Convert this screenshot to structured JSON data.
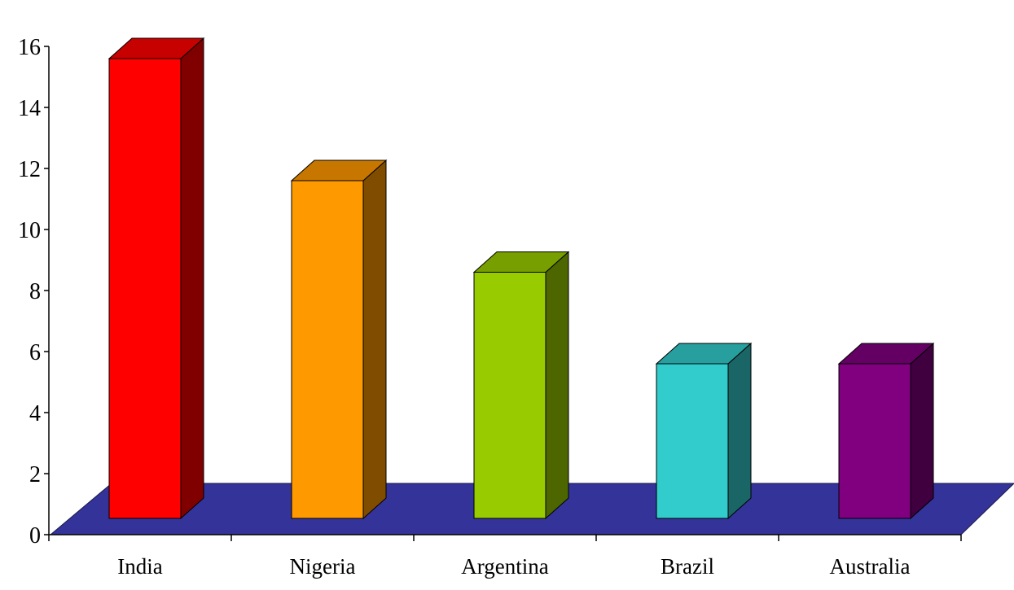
{
  "chart_data": {
    "type": "bar",
    "categories": [
      "India",
      "Nigeria",
      "Argentina",
      "Brazil",
      "Australia"
    ],
    "values": [
      16,
      12,
      9,
      6,
      6
    ],
    "colors": {
      "India": "#ff0000",
      "Nigeria": "#ff9900",
      "Argentina": "#99cc00",
      "Brazil": "#33cccc",
      "Australia": "#800080"
    },
    "floor_color": "#333399",
    "title": "",
    "xlabel": "",
    "ylabel": "",
    "ylim": [
      0,
      16
    ],
    "yticks": [
      0,
      2,
      4,
      6,
      8,
      10,
      12,
      14,
      16
    ],
    "style": "3d-bars",
    "grid": false,
    "legend": "none"
  }
}
